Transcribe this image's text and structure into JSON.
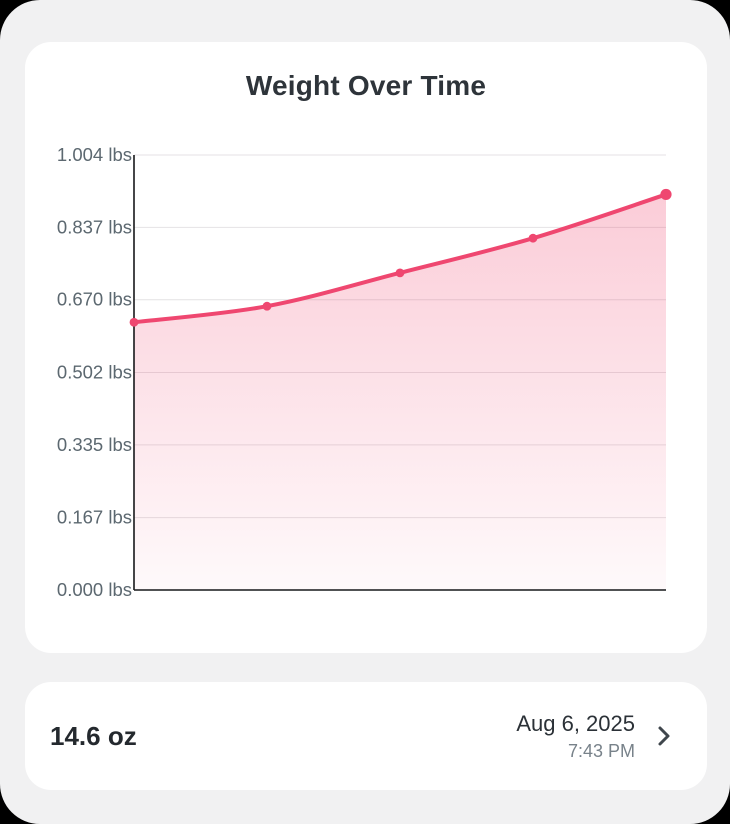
{
  "screen": {
    "background": "#f1f1f2",
    "outer_background": "#000000"
  },
  "chart_card": {
    "title": "Weight Over Time"
  },
  "chart_data": {
    "type": "area",
    "title": "Weight Over Time",
    "unit": "lbs",
    "x": [
      1,
      2,
      3,
      4,
      5
    ],
    "x_tick_labels": [],
    "values": [
      0.618,
      0.655,
      0.732,
      0.812,
      0.913
    ],
    "latest_value_display": "14.6 oz",
    "ylim": [
      0,
      1.004
    ],
    "y_ticks": [
      {
        "label": "1.004 lbs",
        "value": 1.004
      },
      {
        "label": "0.837 lbs",
        "value": 0.837
      },
      {
        "label": "0.670 lbs",
        "value": 0.67
      },
      {
        "label": "0.502 lbs",
        "value": 0.502
      },
      {
        "label": "0.335 lbs",
        "value": 0.335
      },
      {
        "label": "0.167 lbs",
        "value": 0.167
      },
      {
        "label": "0.000 lbs",
        "value": 0.0
      }
    ],
    "grid": true,
    "legend": false,
    "line_color": "#ef4770",
    "fill_top_opacity": 0.3,
    "fill_bottom_opacity": 0.03,
    "grid_color": "#e4e2e4",
    "axis_color": "#17181a",
    "tick_label_color": "#5c6870"
  },
  "entry_row": {
    "weight": "14.6 oz",
    "date": "Aug 6, 2025",
    "time": "7:43 PM",
    "chevron_icon": "chevron-right",
    "chevron_color": "#3f464c"
  }
}
